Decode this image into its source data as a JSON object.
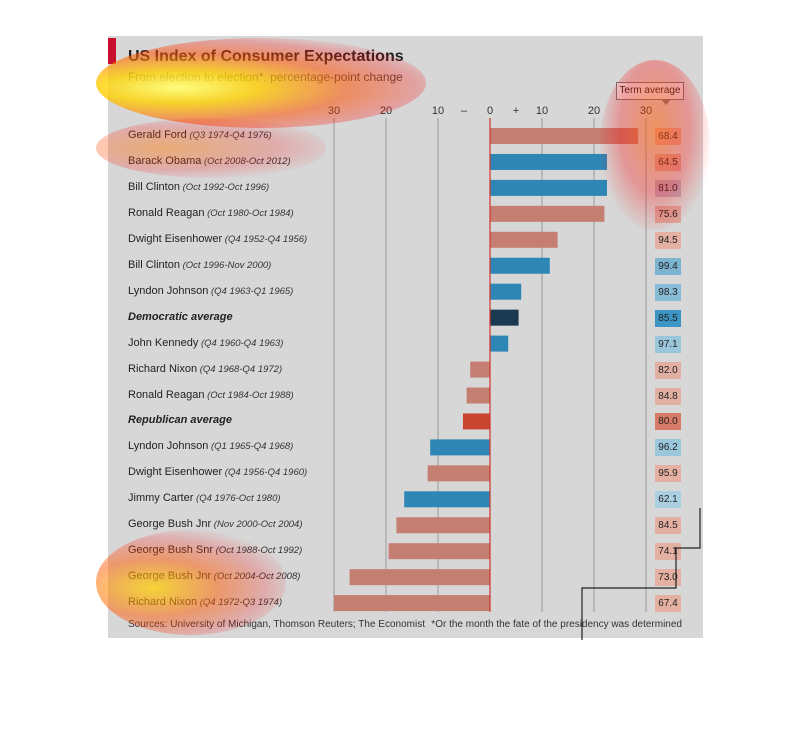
{
  "chart_data": {
    "type": "bar",
    "title": "US Index of Consumer Expectations",
    "subtitle": "From election to election*, percentage-point change",
    "term_average_label": "Term average",
    "xlim": [
      -30,
      30
    ],
    "x_ticks": [
      "30",
      "20",
      "10",
      "–",
      "0",
      "+",
      "10",
      "20",
      "30"
    ],
    "rows": [
      {
        "name": "Gerald Ford",
        "period": "(Q3 1974-Q4 1976)",
        "value": 28.5,
        "term_average": "68.4",
        "bar_color": "#c47f72",
        "avg_color": "#e0a99b",
        "bold": false
      },
      {
        "name": "Barack Obama",
        "period": "(Oct 2008-Oct 2012)",
        "value": 22.5,
        "term_average": "64.5",
        "bar_color": "#2e86b5",
        "avg_color": "#d6a59e",
        "bold": false
      },
      {
        "name": "Bill Clinton",
        "period": "(Oct 1992-Oct 1996)",
        "value": 22.5,
        "term_average": "81.0",
        "bar_color": "#2e86b5",
        "avg_color": "#b9aec0",
        "bold": false
      },
      {
        "name": "Ronald Reagan",
        "period": "(Oct 1980-Oct 1984)",
        "value": 22.0,
        "term_average": "75.6",
        "bar_color": "#c47f72",
        "avg_color": "#d9a69c",
        "bold": false
      },
      {
        "name": "Dwight Eisenhower",
        "period": "(Q4 1952-Q4 1956)",
        "value": 13.0,
        "term_average": "94.5",
        "bar_color": "#c47f72",
        "avg_color": "#e3b0a2",
        "bold": false
      },
      {
        "name": "Bill Clinton",
        "period": "(Oct 1996-Nov 2000)",
        "value": 11.5,
        "term_average": "99.4",
        "bar_color": "#2e86b5",
        "avg_color": "#7bb3d1",
        "bold": false
      },
      {
        "name": "Lyndon Johnson",
        "period": "(Q4 1963-Q1 1965)",
        "value": 6.0,
        "term_average": "98.3",
        "bar_color": "#2e86b5",
        "avg_color": "#88bcd6",
        "bold": false
      },
      {
        "name": "Democratic average",
        "period": "",
        "value": 5.5,
        "term_average": "85.5",
        "bar_color": "#1a3a52",
        "avg_color": "#3d95c4",
        "bold": true
      },
      {
        "name": "John Kennedy",
        "period": "(Q4 1960-Q4 1963)",
        "value": 3.5,
        "term_average": "97.1",
        "bar_color": "#2e86b5",
        "avg_color": "#9ac6dc",
        "bold": false
      },
      {
        "name": "Richard Nixon",
        "period": "(Q4 1968-Q4 1972)",
        "value": -3.8,
        "term_average": "82.0",
        "bar_color": "#c47f72",
        "avg_color": "#e2b0a3",
        "bold": false
      },
      {
        "name": "Ronald Reagan",
        "period": "(Oct 1984-Oct 1988)",
        "value": -4.5,
        "term_average": "84.8",
        "bar_color": "#c47f72",
        "avg_color": "#e2b0a3",
        "bold": false
      },
      {
        "name": "Republican average",
        "period": "",
        "value": -5.2,
        "term_average": "80.0",
        "bar_color": "#c8452f",
        "avg_color": "#d77a68",
        "bold": true
      },
      {
        "name": "Lyndon Johnson",
        "period": "(Q1 1965-Q4 1968)",
        "value": -11.5,
        "term_average": "96.2",
        "bar_color": "#2e86b5",
        "avg_color": "#9ac6dc",
        "bold": false
      },
      {
        "name": "Dwight Eisenhower",
        "period": "(Q4 1956-Q4 1960)",
        "value": -12.0,
        "term_average": "95.9",
        "bar_color": "#c47f72",
        "avg_color": "#e3b0a2",
        "bold": false
      },
      {
        "name": "Jimmy Carter",
        "period": "(Q4 1976-Oct 1980)",
        "value": -16.5,
        "term_average": "62.1",
        "bar_color": "#2e86b5",
        "avg_color": "#a9cfe0",
        "bold": false
      },
      {
        "name": "George Bush Jnr",
        "period": "(Nov 2000-Oct 2004)",
        "value": -18.0,
        "term_average": "84.5",
        "bar_color": "#c47f72",
        "avg_color": "#e3b0a2",
        "bold": false
      },
      {
        "name": "George Bush Snr",
        "period": "(Oct 1988-Oct 1992)",
        "value": -19.5,
        "term_average": "74.1",
        "bar_color": "#c47f72",
        "avg_color": "#e3b0a2",
        "bold": false
      },
      {
        "name": "George Bush Jnr",
        "period": "(Oct 2004-Oct 2008)",
        "value": -27.0,
        "term_average": "73.0",
        "bar_color": "#c47f72",
        "avg_color": "#e3b0a2",
        "bold": false
      },
      {
        "name": "Richard Nixon",
        "period": "(Q4 1972-Q3 1974)",
        "value": -30.0,
        "term_average": "67.4",
        "bar_color": "#c47f72",
        "avg_color": "#e3b0a2",
        "bold": false
      }
    ],
    "grid": true,
    "source": "Sources: University of Michigan, Thomson Reuters; The Economist",
    "note": "*Or the month the fate of the presidency was determined"
  }
}
